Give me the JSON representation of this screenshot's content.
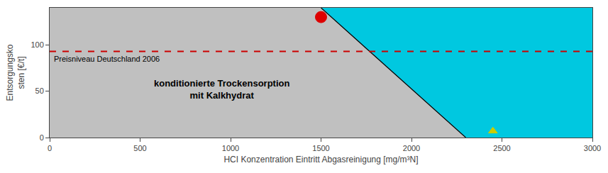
{
  "chart_data": {
    "type": "scatter",
    "x_label": "HCI Konzentration Eintritt Abgasreinigung [mg/m³N]",
    "y_label": "Entsorgungsko\nsten [€/t]",
    "xlim": [
      0,
      3000
    ],
    "ylim": [
      0,
      140
    ],
    "xticks": [
      0,
      500,
      1000,
      1500,
      2000,
      2500,
      3000
    ],
    "yticks": [
      0,
      50,
      100
    ],
    "grid": false,
    "background_color": "#00c8e0",
    "regions": [
      {
        "color": "#c0c0c0",
        "x": [
          0,
          0,
          1500,
          2300
        ],
        "y": [
          0,
          140,
          140,
          0
        ]
      }
    ],
    "series": [
      {
        "type": "line",
        "color": "#000000",
        "line_style": "solid",
        "x": [
          1500,
          2300
        ],
        "y": [
          140,
          0
        ]
      },
      {
        "type": "scatter",
        "marker": "circle",
        "color": "#dd0000",
        "x": [
          1500
        ],
        "y": [
          130
        ]
      },
      {
        "type": "scatter",
        "marker": "triangle-up",
        "color": "#cccc00",
        "x": [
          2450
        ],
        "y": [
          7
        ]
      }
    ],
    "reference_lines": [
      {
        "y": 93,
        "color": "#cc0000",
        "line_style": "dashed",
        "label": "Preisniveau Deutschland 2006"
      }
    ],
    "annotations": [
      {
        "text": "konditionierte Trockensorption\nmit Kalkhydrat",
        "x": 950,
        "y": 52
      }
    ]
  }
}
